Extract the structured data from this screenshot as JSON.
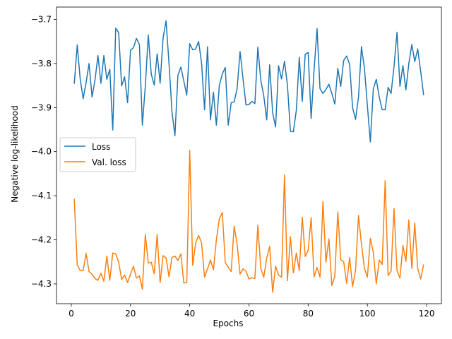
{
  "chart_data": {
    "type": "line",
    "title": "",
    "xlabel": "Epochs",
    "ylabel": "Negative log-likelihood",
    "xlim": [
      -5,
      125
    ],
    "ylim": [
      -4.345,
      -3.672
    ],
    "xticks": [
      0,
      20,
      40,
      60,
      80,
      100,
      120
    ],
    "xtick_labels": [
      "0",
      "20",
      "40",
      "60",
      "80",
      "100",
      "120"
    ],
    "yticks": [
      -4.3,
      -4.2,
      -4.1,
      -4.0,
      -3.9,
      -3.8,
      -3.7
    ],
    "ytick_labels": [
      "−4.3",
      "−4.2",
      "−4.1",
      "−4.0",
      "−3.9",
      "−3.8",
      "−3.7"
    ],
    "grid": false,
    "legend": "center-left",
    "x": [
      1,
      2,
      3,
      4,
      5,
      6,
      7,
      8,
      9,
      10,
      11,
      12,
      13,
      14,
      15,
      16,
      17,
      18,
      19,
      20,
      21,
      22,
      23,
      24,
      25,
      26,
      27,
      28,
      29,
      30,
      31,
      32,
      33,
      34,
      35,
      36,
      37,
      38,
      39,
      40,
      41,
      42,
      43,
      44,
      45,
      46,
      47,
      48,
      49,
      50,
      51,
      52,
      53,
      54,
      55,
      56,
      57,
      58,
      59,
      60,
      61,
      62,
      63,
      64,
      65,
      66,
      67,
      68,
      69,
      70,
      71,
      72,
      73,
      74,
      75,
      76,
      77,
      78,
      79,
      80,
      81,
      82,
      83,
      84,
      85,
      86,
      87,
      88,
      89,
      90,
      91,
      92,
      93,
      94,
      95,
      96,
      97,
      98,
      99,
      100,
      101,
      102,
      103,
      104,
      105,
      106,
      107,
      108,
      109,
      110,
      111,
      112,
      113,
      114,
      115,
      116,
      117,
      118,
      119
    ],
    "series": [
      {
        "name": "Loss",
        "color": "#1f77b4",
        "values": [
          -3.846,
          -3.758,
          -3.835,
          -3.88,
          -3.843,
          -3.8,
          -3.876,
          -3.838,
          -3.782,
          -3.845,
          -3.782,
          -3.836,
          -3.813,
          -3.951,
          -3.72,
          -3.73,
          -3.851,
          -3.83,
          -3.889,
          -3.77,
          -3.764,
          -3.743,
          -3.757,
          -3.94,
          -3.851,
          -3.735,
          -3.824,
          -3.849,
          -3.778,
          -3.845,
          -3.742,
          -3.703,
          -3.8,
          -3.909,
          -3.964,
          -3.827,
          -3.808,
          -3.84,
          -3.872,
          -3.755,
          -3.769,
          -3.767,
          -3.75,
          -3.799,
          -3.905,
          -3.762,
          -3.928,
          -3.865,
          -3.94,
          -3.849,
          -3.824,
          -3.809,
          -3.94,
          -3.889,
          -3.887,
          -3.857,
          -3.773,
          -3.835,
          -3.894,
          -3.893,
          -3.886,
          -3.891,
          -3.763,
          -3.838,
          -3.873,
          -3.928,
          -3.803,
          -3.912,
          -3.944,
          -3.805,
          -3.835,
          -3.795,
          -3.849,
          -3.954,
          -3.955,
          -3.906,
          -3.786,
          -3.886,
          -3.779,
          -3.775,
          -3.925,
          -3.814,
          -3.721,
          -3.857,
          -3.868,
          -3.859,
          -3.847,
          -3.868,
          -3.892,
          -3.811,
          -3.852,
          -3.793,
          -3.783,
          -3.802,
          -3.9,
          -3.927,
          -3.876,
          -3.762,
          -3.811,
          -3.896,
          -3.978,
          -3.858,
          -3.836,
          -3.876,
          -3.905,
          -3.905,
          -3.854,
          -3.868,
          -3.807,
          -3.729,
          -3.852,
          -3.805,
          -3.86,
          -3.8,
          -3.757,
          -3.796,
          -3.767,
          -3.818,
          -3.872
        ]
      },
      {
        "name": "Val. loss",
        "color": "#ff7f0e",
        "values": [
          -4.107,
          -4.257,
          -4.27,
          -4.27,
          -4.231,
          -4.272,
          -4.278,
          -4.288,
          -4.292,
          -4.276,
          -4.294,
          -4.237,
          -4.292,
          -4.23,
          -4.232,
          -4.251,
          -4.29,
          -4.28,
          -4.297,
          -4.278,
          -4.26,
          -4.287,
          -4.282,
          -4.312,
          -4.188,
          -4.253,
          -4.251,
          -4.277,
          -4.188,
          -4.297,
          -4.236,
          -4.241,
          -4.284,
          -4.24,
          -4.237,
          -4.247,
          -4.232,
          -4.298,
          -4.297,
          -3.997,
          -4.258,
          -4.207,
          -4.19,
          -4.207,
          -4.285,
          -4.266,
          -4.246,
          -4.268,
          -4.2,
          -4.152,
          -4.138,
          -4.252,
          -4.262,
          -4.272,
          -4.169,
          -4.21,
          -4.278,
          -4.266,
          -4.271,
          -4.289,
          -4.286,
          -4.288,
          -4.167,
          -4.265,
          -4.285,
          -4.242,
          -4.215,
          -4.319,
          -4.26,
          -4.28,
          -4.285,
          -4.053,
          -4.293,
          -4.193,
          -4.275,
          -4.23,
          -4.27,
          -4.149,
          -4.238,
          -4.224,
          -4.15,
          -4.284,
          -4.263,
          -4.285,
          -4.113,
          -4.251,
          -4.198,
          -4.304,
          -4.283,
          -4.137,
          -4.245,
          -4.25,
          -4.299,
          -4.24,
          -4.306,
          -4.27,
          -4.145,
          -4.21,
          -4.265,
          -4.285,
          -4.197,
          -4.229,
          -4.3,
          -4.246,
          -4.256,
          -4.066,
          -4.281,
          -4.271,
          -4.129,
          -4.27,
          -4.287,
          -4.213,
          -4.249,
          -4.155,
          -4.265,
          -4.162,
          -4.265,
          -4.289,
          -4.256
        ]
      }
    ]
  }
}
